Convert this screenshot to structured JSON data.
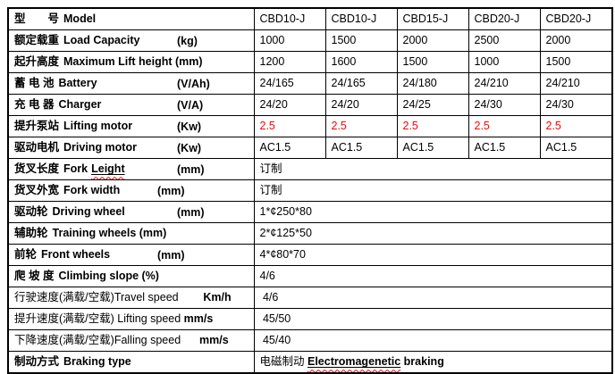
{
  "colors": {
    "border": "#000000",
    "text": "#000000",
    "highlight_red": "#ff0000",
    "spellcheck_squiggle": "#ff0000",
    "background": "#ffffff"
  },
  "table": {
    "name": "forklift-specification-table",
    "value_columns": 5,
    "rows": [
      {
        "name": "model",
        "label": {
          "zh": "型　　号",
          "en": "Model"
        },
        "values": [
          "CBD10-J",
          "CBD10-J",
          "CBD15-J",
          "CBD20-J",
          "CBD20-J"
        ]
      },
      {
        "name": "load-capacity",
        "label": {
          "zh": "额定载重",
          "en": "Load Capacity",
          "unit": "(kg)",
          "unit_tab": "far"
        },
        "values": [
          "1000",
          "1500",
          "2000",
          "2500",
          "2000"
        ]
      },
      {
        "name": "max-lift-height",
        "label": {
          "zh": "起升高度",
          "en": "Maximum Lift height (mm)"
        },
        "values": [
          "1200",
          "1600",
          "1500",
          "1000",
          "1500"
        ]
      },
      {
        "name": "battery",
        "label": {
          "zh": "蓄 电 池",
          "en": "Battery",
          "unit": "(V/Ah)",
          "unit_tab": "far"
        },
        "values": [
          "24/165",
          "24/165",
          "24/180",
          "24/210",
          "24/210"
        ]
      },
      {
        "name": "charger",
        "label": {
          "zh": "充 电 器",
          "en": "Charger",
          "unit": "(V/A)",
          "unit_tab": "far"
        },
        "values": [
          "24/20",
          "24/20",
          "24/25",
          "24/30",
          "24/30"
        ]
      },
      {
        "name": "lifting-motor",
        "label": {
          "zh": "提升泵站",
          "en": "Lifting motor",
          "unit": "(Kw)",
          "unit_tab": "far"
        },
        "values": [
          "2.5",
          "2.5",
          "2.5",
          "2.5",
          "2.5"
        ],
        "values_red": true
      },
      {
        "name": "driving-motor",
        "label": {
          "zh": "驱动电机",
          "en": "Driving motor",
          "unit": "(Kw)",
          "unit_tab": "far"
        },
        "values": [
          "AC1.5",
          "AC1.5",
          "AC1.5",
          "AC1.5",
          "AC1.5"
        ]
      },
      {
        "name": "fork-length",
        "label": {
          "zh": "货叉长度",
          "en": "Fork",
          "deco": "Leight",
          "unit": "(mm)",
          "unit_tab": "far"
        },
        "span_value": "订制"
      },
      {
        "name": "fork-width",
        "label": {
          "zh": "货叉外宽",
          "en": "Fork width",
          "unit": "(mm)",
          "unit_tab": "near"
        },
        "span_value": "订制"
      },
      {
        "name": "driving-wheel",
        "label": {
          "zh": "驱动轮",
          "en": "Driving wheel",
          "unit": "(mm)",
          "unit_tab": "far"
        },
        "span_value": "1*¢250*80"
      },
      {
        "name": "training-wheels",
        "label": {
          "zh": "辅助轮",
          "en": "Training wheels (mm)"
        },
        "span_value": "2*¢125*50"
      },
      {
        "name": "front-wheels",
        "label": {
          "zh": "前轮",
          "en": "Front wheels",
          "unit": "(mm)",
          "unit_tab": "near"
        },
        "span_value": "4*¢80*70"
      },
      {
        "name": "climbing-slope",
        "label": {
          "zh": "爬 坡 度",
          "en": "Climbing slope (%)"
        },
        "span_value": "4/6"
      },
      {
        "name": "travel-speed",
        "label": {
          "zh": "行驶速度(满载/空载)",
          "en": "Travel speed        ",
          "unit": "Km/h",
          "unit_tab": "inline"
        },
        "label_plain": true,
        "span_value": " 4/6"
      },
      {
        "name": "lifting-speed",
        "label": {
          "zh": "提升速度(满载/空载)",
          "en": " Lifting speed ",
          "unit": "mm/s",
          "unit_tab": "inline"
        },
        "label_plain": true,
        "span_value": " 45/50"
      },
      {
        "name": "falling-speed",
        "label": {
          "zh": "下降速度(满载/空载)",
          "en": "Falling speed      ",
          "unit": "mm/s",
          "unit_tab": "inline"
        },
        "label_plain": true,
        "span_value": " 45/40"
      },
      {
        "name": "braking-type",
        "label": {
          "zh": "制动方式",
          "en": "Braking type"
        },
        "span_value_parts": {
          "pre": "电磁制动 ",
          "deco": "Electromagenetic",
          "post": " braking"
        }
      }
    ]
  }
}
